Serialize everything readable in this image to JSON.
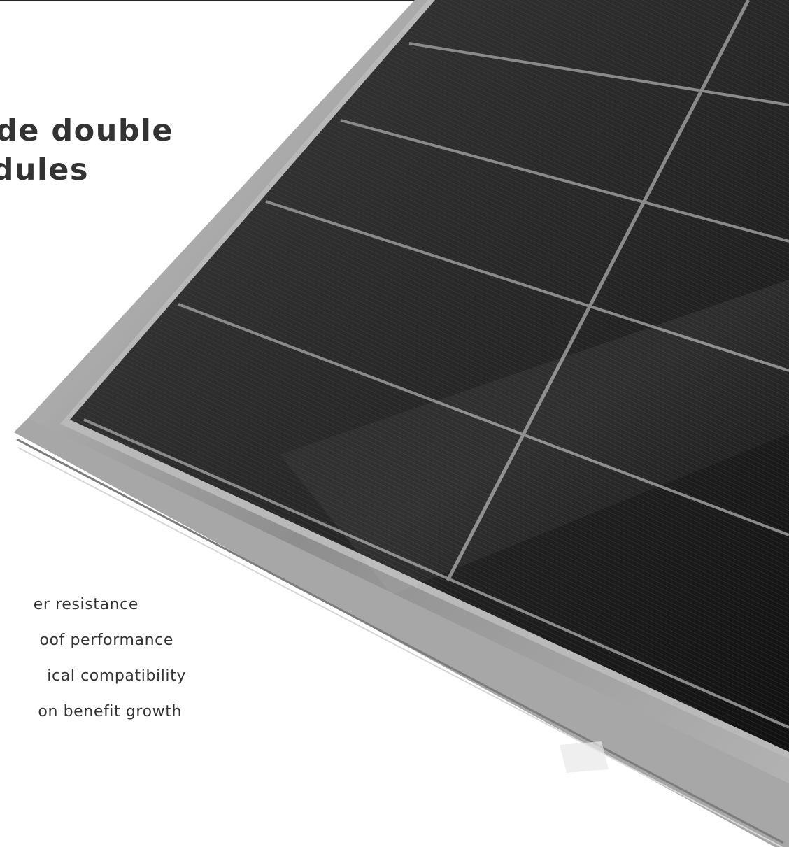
{
  "headline": {
    "line1": "de double",
    "line2": "dules"
  },
  "features": [
    "er resistance",
    "oof performance",
    "ical compatibility",
    "on benefit growth"
  ],
  "colors": {
    "text": "#333333",
    "cell": "#1c1c1c",
    "frame": "#9a9a9a",
    "background": "#ffffff"
  }
}
